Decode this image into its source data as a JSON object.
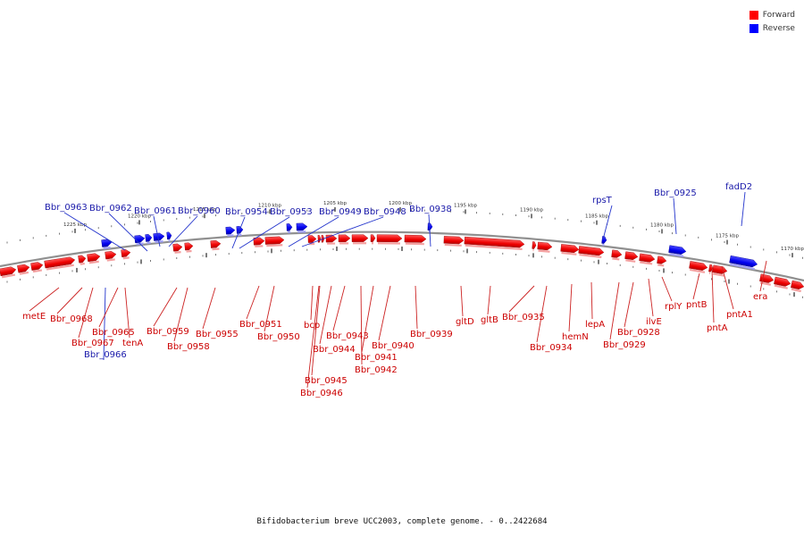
{
  "legend": {
    "forward": "Forward",
    "reverse": "Reverse",
    "forward_color": "#ff0000",
    "reverse_color": "#0000ff"
  },
  "caption": "Bifidobacterium breve UCC2003, complete genome. - 0..2422684",
  "ticks": [
    "1225 kbp",
    "1220 kbp",
    "1215 kbp",
    "1210 kbp",
    "1205 kbp",
    "1200 kbp",
    "1195 kbp",
    "1190 kbp",
    "1185 kbp",
    "1180 kbp",
    "1175 kbp",
    "1170 kbp"
  ],
  "reverse_labels": [
    "Bbr_0963",
    "Bbr_0962",
    "Bbr_0961",
    "Bbr_0960",
    "Bbr_0954",
    "Bbr_0953",
    "Bbr_0949",
    "Bbr_0948",
    "Bbr_0938",
    "rpsT",
    "Bbr_0925",
    "fadD2",
    "Bbr_0966"
  ],
  "forward_labels": [
    "metE",
    "Bbr_0968",
    "Bbr_0967",
    "Bbr_0965",
    "tenA",
    "Bbr_0959",
    "Bbr_0958",
    "Bbr_0955",
    "Bbr_0951",
    "Bbr_0950",
    "bcp",
    "Bbr_0943",
    "Bbr_0944",
    "Bbr_0945",
    "Bbr_0946",
    "Bbr_0942",
    "Bbr_0941",
    "Bbr_0940",
    "Bbr_0939",
    "gltD",
    "gltB",
    "Bbr_0935",
    "Bbr_0934",
    "hemN",
    "lepA",
    "Bbr_0929",
    "Bbr_0928",
    "ilvE",
    "rplY",
    "pntB",
    "pntA",
    "pntA1",
    "era"
  ]
}
